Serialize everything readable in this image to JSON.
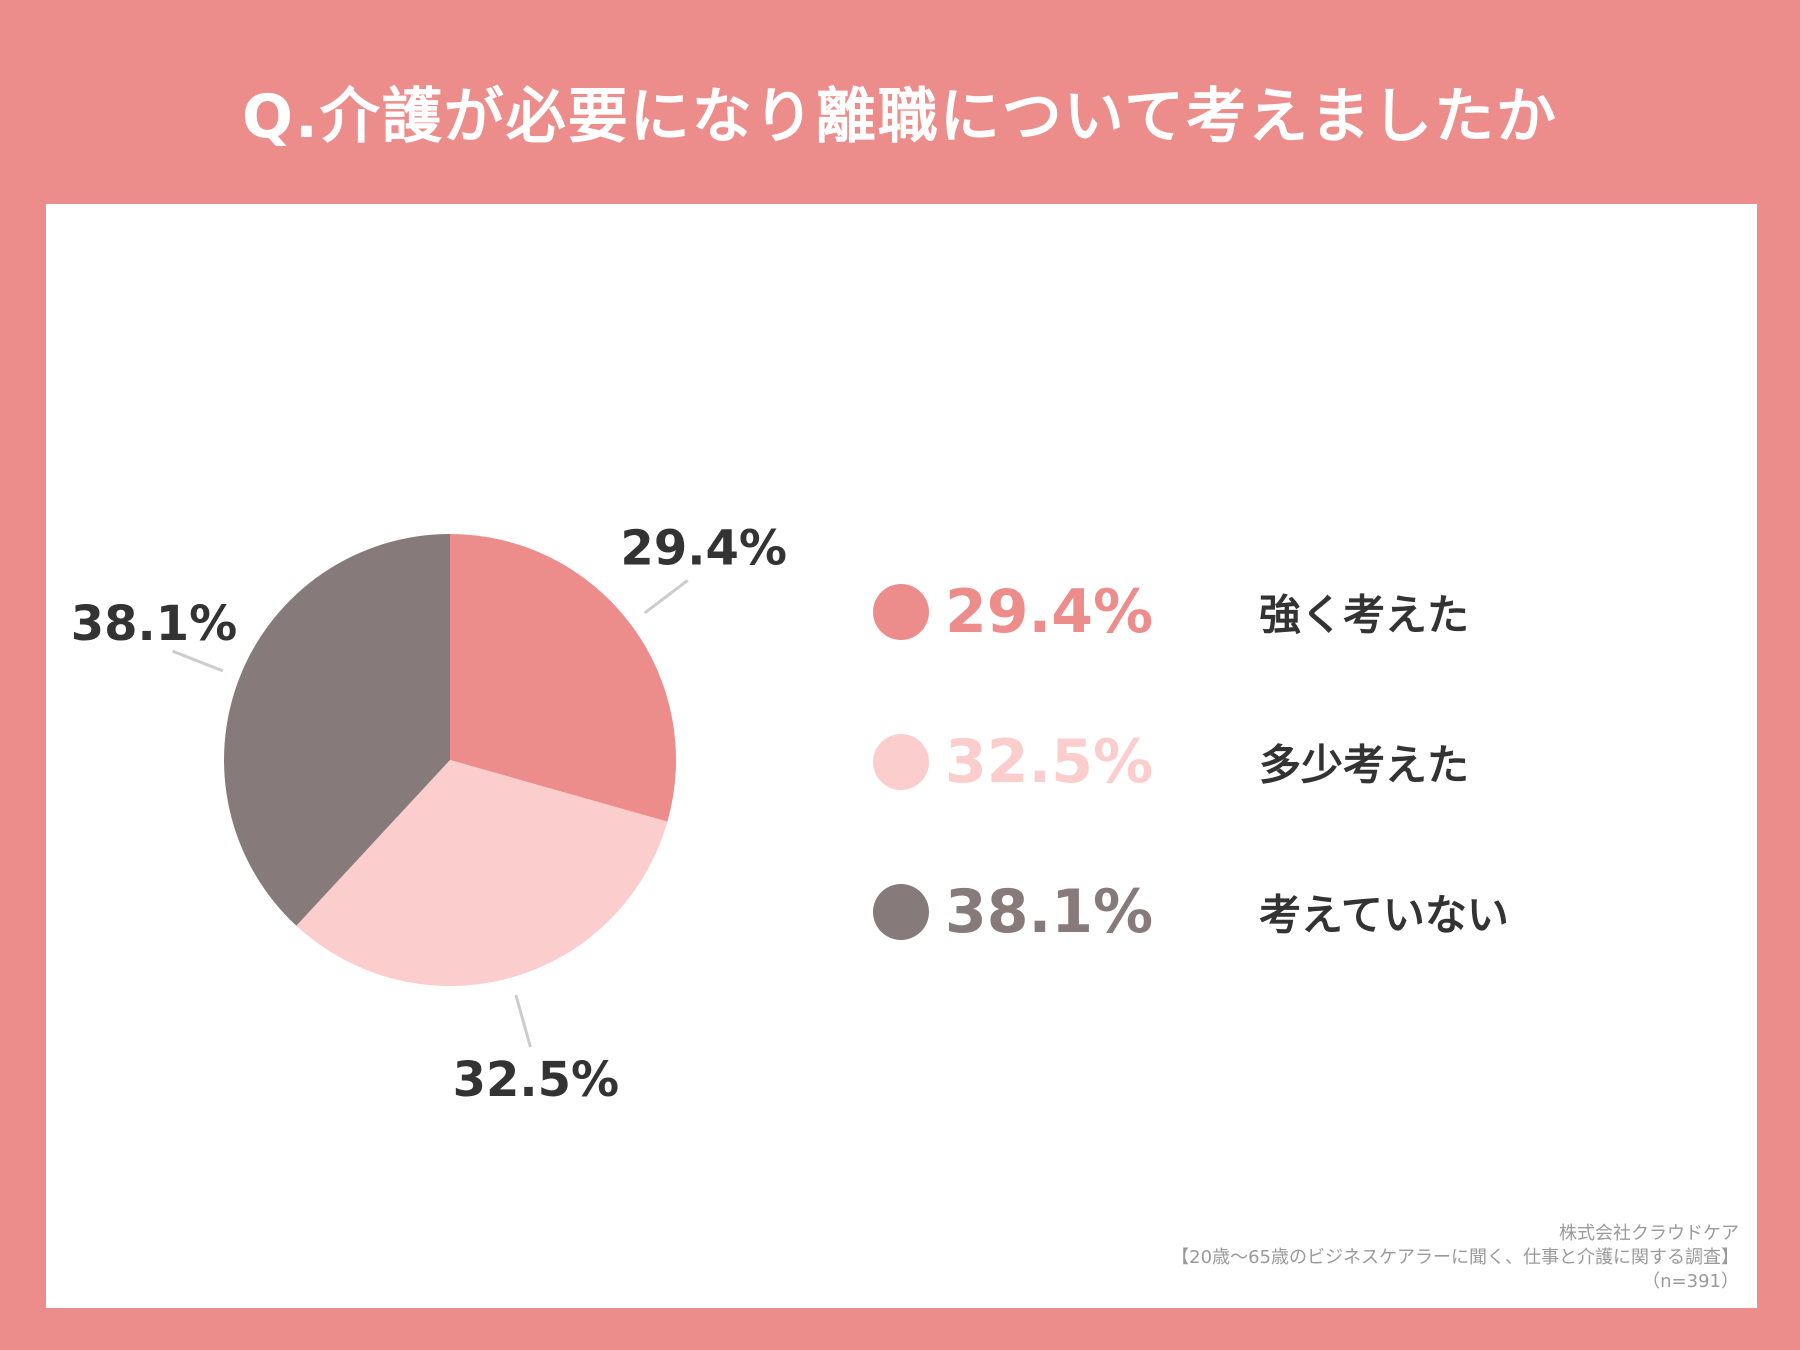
{
  "title": "Q.介護が必要になり離職について考えましたか",
  "colors": {
    "background": "#ec8d8b",
    "card": "#ffffff",
    "slice1": "#ec8d8b",
    "slice2": "#fbcdcc",
    "slice3": "#867a7a",
    "label_text": "#333333",
    "leader_line": "#cccccc"
  },
  "chart_data": {
    "type": "pie",
    "slices": [
      {
        "label": "強く考えた",
        "value": 29.4,
        "display": "29.4%",
        "color": "#ec8d8b"
      },
      {
        "label": "多少考えた",
        "value": 32.5,
        "display": "32.5%",
        "color": "#fbcdcc"
      },
      {
        "label": "考えていない",
        "value": 38.1,
        "display": "38.1%",
        "color": "#867a7a"
      }
    ],
    "start": "12 o'clock",
    "direction": "clockwise",
    "legend_placement": "right"
  },
  "legend": [
    {
      "value": "29.4%",
      "label": "強く考えた"
    },
    {
      "value": "32.5%",
      "label": "多少考えた"
    },
    {
      "value": "38.1%",
      "label": "考えていない"
    }
  ],
  "source": {
    "company": "株式会社クラウドケア",
    "survey": "【20歳～65歳のビジネスケアラーに聞く、仕事と介護に関する調査】",
    "sample": "（n=391）"
  }
}
